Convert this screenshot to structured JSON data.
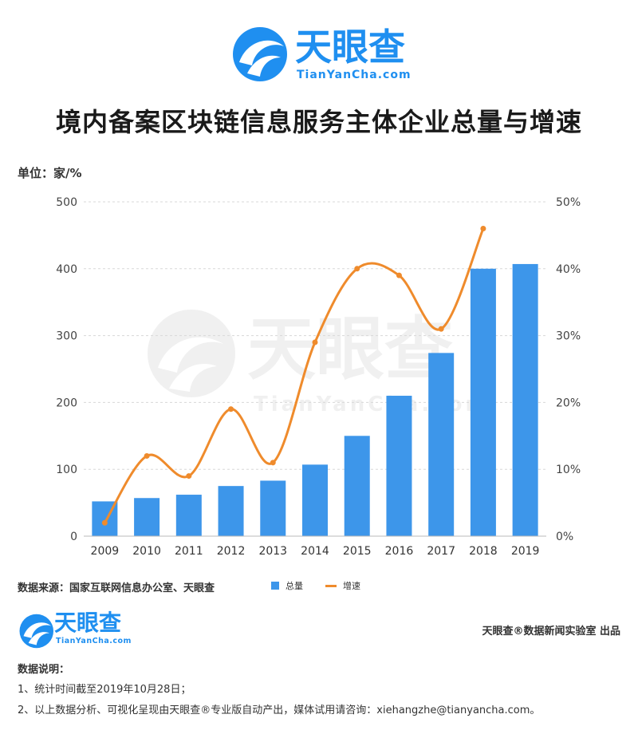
{
  "header": {
    "brand_cn": "天眼查",
    "brand_en": "TianYanCha.com"
  },
  "title": "境内备案区块链信息服务主体企业总量与增速",
  "unit": "单位：家/%",
  "footer": {
    "source": "数据来源：国家互联网信息办公室、天眼查",
    "credit": "天眼查®数据新闻实验室 出品",
    "brand_cn": "天眼查",
    "brand_en": "TianYanCha.com",
    "notes_title": "数据说明：",
    "notes": [
      "1、统计时间截至2019年10月28日；",
      "2、以上数据分析、可视化呈现由天眼查®专业版自动产出，媒体试用请咨询：xiehangzhe@tianyancha.com。"
    ]
  },
  "watermark": {
    "brand_cn": "天眼查",
    "brand_en": "TianYanCha.com"
  },
  "colors": {
    "brand": "#1f8ff0",
    "bar": "#3d96ea",
    "line": "#ef8b2c"
  },
  "chart_data": {
    "type": "bar",
    "categories": [
      "2009",
      "2010",
      "2011",
      "2012",
      "2013",
      "2014",
      "2015",
      "2016",
      "2017",
      "2018",
      "2019"
    ],
    "series": [
      {
        "name": "总量",
        "type": "bar",
        "axis": "left",
        "values": [
          52,
          57,
          62,
          75,
          83,
          107,
          150,
          210,
          274,
          400,
          407
        ]
      },
      {
        "name": "增速",
        "type": "line",
        "axis": "right",
        "values": [
          2,
          12,
          9,
          19,
          11,
          29,
          40,
          39,
          31,
          46,
          null
        ]
      }
    ],
    "ylim_left": [
      0,
      500
    ],
    "yticks_left": [
      "0",
      "100",
      "200",
      "300",
      "400",
      "500"
    ],
    "ylim_right": [
      0,
      50
    ],
    "yticks_right": [
      "0%",
      "10%",
      "20%",
      "30%",
      "40%",
      "50%"
    ],
    "grid": true,
    "legend_position": "bottom-center"
  }
}
